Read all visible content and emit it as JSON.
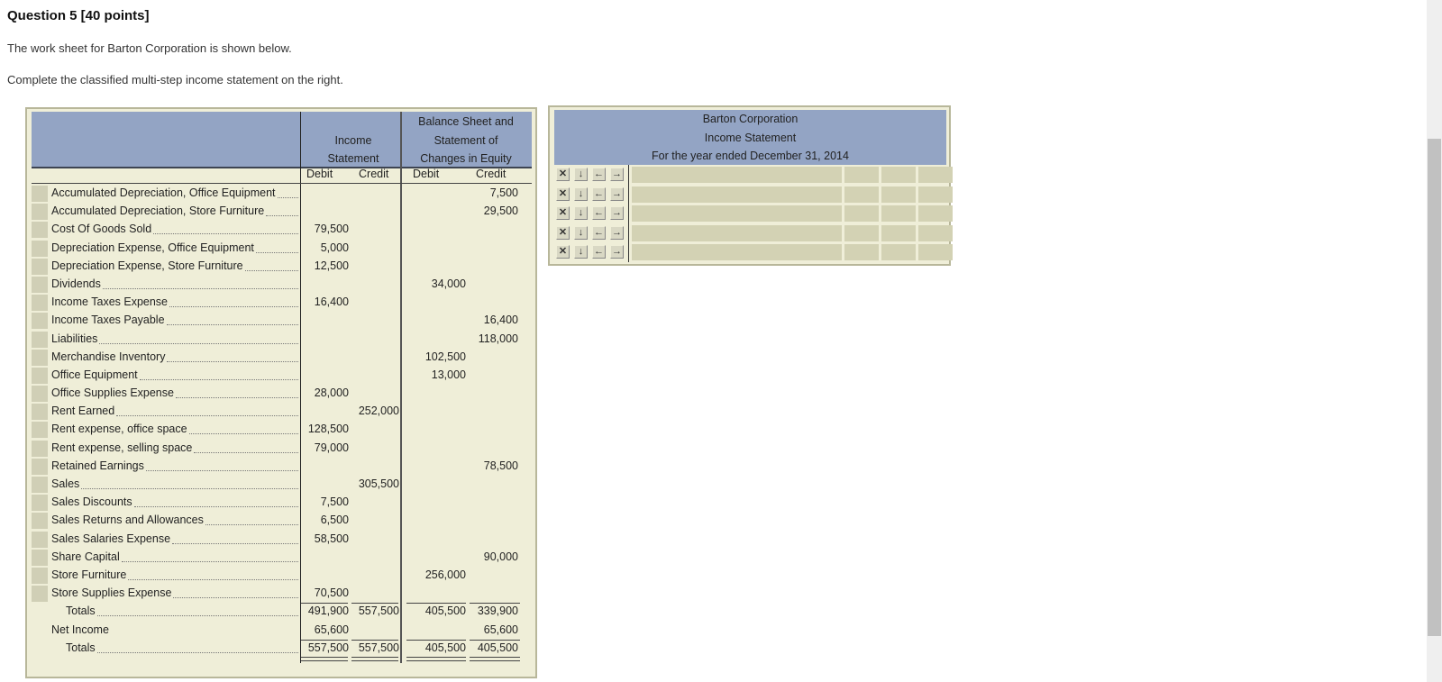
{
  "question": {
    "title": "Question 5 [40 points]",
    "line1": "The work sheet for Barton Corporation is shown below.",
    "line2": "Complete the classified multi-step income statement on the right."
  },
  "worksheet": {
    "header": {
      "income_statement": [
        "Income",
        "Statement"
      ],
      "balance_sheet": [
        "Balance Sheet and",
        "Statement of",
        "Changes in Equity"
      ],
      "subheads": [
        "Debit",
        "Credit",
        "Debit",
        "Credit"
      ]
    },
    "rows": [
      {
        "label": "Accumulated Depreciation, Office Equipment",
        "is_debit": "",
        "is_credit": "",
        "bs_debit": "",
        "bs_credit": "7,500"
      },
      {
        "label": "Accumulated Depreciation, Store Furniture",
        "is_debit": "",
        "is_credit": "",
        "bs_debit": "",
        "bs_credit": "29,500"
      },
      {
        "label": "Cost Of Goods Sold",
        "is_debit": "79,500",
        "is_credit": "",
        "bs_debit": "",
        "bs_credit": ""
      },
      {
        "label": "Depreciation Expense, Office Equipment",
        "is_debit": "5,000",
        "is_credit": "",
        "bs_debit": "",
        "bs_credit": ""
      },
      {
        "label": "Depreciation Expense, Store Furniture",
        "is_debit": "12,500",
        "is_credit": "",
        "bs_debit": "",
        "bs_credit": ""
      },
      {
        "label": "Dividends",
        "is_debit": "",
        "is_credit": "",
        "bs_debit": "34,000",
        "bs_credit": ""
      },
      {
        "label": "Income Taxes Expense",
        "is_debit": "16,400",
        "is_credit": "",
        "bs_debit": "",
        "bs_credit": ""
      },
      {
        "label": "Income Taxes Payable",
        "is_debit": "",
        "is_credit": "",
        "bs_debit": "",
        "bs_credit": "16,400"
      },
      {
        "label": "Liabilities",
        "is_debit": "",
        "is_credit": "",
        "bs_debit": "",
        "bs_credit": "118,000"
      },
      {
        "label": "Merchandise Inventory",
        "is_debit": "",
        "is_credit": "",
        "bs_debit": "102,500",
        "bs_credit": ""
      },
      {
        "label": "Office Equipment",
        "is_debit": "",
        "is_credit": "",
        "bs_debit": "13,000",
        "bs_credit": ""
      },
      {
        "label": "Office Supplies Expense",
        "is_debit": "28,000",
        "is_credit": "",
        "bs_debit": "",
        "bs_credit": ""
      },
      {
        "label": "Rent Earned",
        "is_debit": "",
        "is_credit": "252,000",
        "bs_debit": "",
        "bs_credit": ""
      },
      {
        "label": "Rent expense, office space",
        "is_debit": "128,500",
        "is_credit": "",
        "bs_debit": "",
        "bs_credit": ""
      },
      {
        "label": "Rent expense, selling space",
        "is_debit": "79,000",
        "is_credit": "",
        "bs_debit": "",
        "bs_credit": ""
      },
      {
        "label": "Retained Earnings",
        "is_debit": "",
        "is_credit": "",
        "bs_debit": "",
        "bs_credit": "78,500"
      },
      {
        "label": "Sales",
        "is_debit": "",
        "is_credit": "305,500",
        "bs_debit": "",
        "bs_credit": ""
      },
      {
        "label": "Sales Discounts",
        "is_debit": "7,500",
        "is_credit": "",
        "bs_debit": "",
        "bs_credit": ""
      },
      {
        "label": "Sales Returns and Allowances",
        "is_debit": "6,500",
        "is_credit": "",
        "bs_debit": "",
        "bs_credit": ""
      },
      {
        "label": "Sales Salaries Expense",
        "is_debit": "58,500",
        "is_credit": "",
        "bs_debit": "",
        "bs_credit": ""
      },
      {
        "label": "Share Capital",
        "is_debit": "",
        "is_credit": "",
        "bs_debit": "",
        "bs_credit": "90,000"
      },
      {
        "label": "Store Furniture",
        "is_debit": "",
        "is_credit": "",
        "bs_debit": "256,000",
        "bs_credit": ""
      },
      {
        "label": "Store Supplies Expense",
        "is_debit": "70,500",
        "is_credit": "",
        "bs_debit": "",
        "bs_credit": ""
      }
    ],
    "totals": {
      "label": "Totals",
      "is_debit": "491,900",
      "is_credit": "557,500",
      "bs_debit": "405,500",
      "bs_credit": "339,900"
    },
    "net_income": {
      "label": "Net Income",
      "is_debit": "65,600",
      "is_credit": "",
      "bs_debit": "",
      "bs_credit": "65,600"
    },
    "final_totals": {
      "label": "Totals",
      "is_debit": "557,500",
      "is_credit": "557,500",
      "bs_debit": "405,500",
      "bs_credit": "405,500"
    }
  },
  "income_statement": {
    "company": "Barton Corporation",
    "title": "Income Statement",
    "period": "For the year ended December 31, 2014",
    "row_tools": [
      {
        "icon": "delete-row-icon",
        "glyph": "✕"
      },
      {
        "icon": "insert-row-below-icon",
        "glyph": "↓"
      },
      {
        "icon": "outdent-icon",
        "glyph": "←"
      },
      {
        "icon": "indent-icon",
        "glyph": "→"
      }
    ],
    "rows": [
      {
        "description": "",
        "amount1": "",
        "amount2": "",
        "amount3": ""
      },
      {
        "description": "",
        "amount1": "",
        "amount2": "",
        "amount3": ""
      },
      {
        "description": "",
        "amount1": "",
        "amount2": "",
        "amount3": ""
      },
      {
        "description": "",
        "amount1": "",
        "amount2": "",
        "amount3": ""
      },
      {
        "description": "",
        "amount1": "",
        "amount2": "",
        "amount3": ""
      }
    ]
  }
}
